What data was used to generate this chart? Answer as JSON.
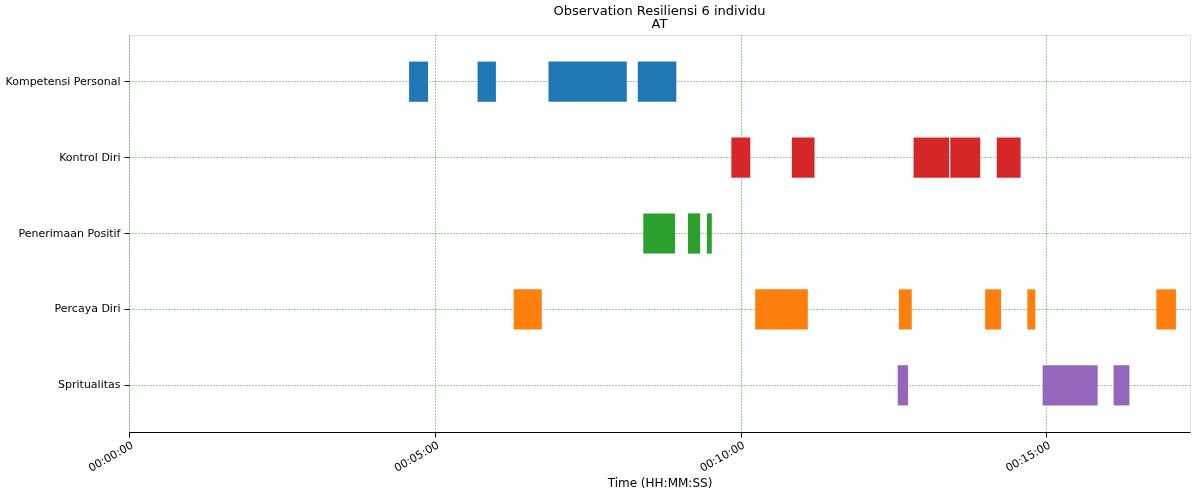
{
  "chart_data": {
    "type": "bar",
    "orientation": "horizontal",
    "title": "Observation Resiliensi 6 individu",
    "subtitle": "AT",
    "xlabel": "Time (HH:MM:SS)",
    "categories": [
      "Kompetensi Personal",
      "Kontrol Diri",
      "Penerimaan Positif",
      "Percaya Diri",
      "Spritualitas"
    ],
    "series": [
      {
        "colors": [
          "#1f77b4",
          "#d62728",
          "#2ca02c",
          "#ff7f0e",
          "#9467bd"
        ],
        "base": [
          4.58,
          9.85,
          8.41,
          6.29,
          12.57
        ],
        "values": [
          0.31,
          0.31,
          0.52,
          0.46,
          0.17
        ]
      },
      {
        "colors": [
          "#1f77b4",
          "#d62728",
          "#2ca02c",
          "#ff7f0e",
          "#9467bd"
        ],
        "base": [
          5.7,
          10.84,
          9.14,
          10.24,
          14.94
        ],
        "values": [
          0.3,
          0.37,
          0.2,
          0.86,
          0.9
        ]
      },
      {
        "colors": [
          "#1f77b4",
          "#d62728",
          "#2ca02c",
          "#ff7f0e",
          "#9467bd"
        ],
        "base": [
          6.86,
          12.83,
          9.45,
          12.59,
          16.1
        ],
        "values": [
          1.28,
          0.58,
          0.08,
          0.21,
          0.26
        ]
      },
      {
        "colors": [
          "#1f77b4",
          "#d62728",
          null,
          "#ff7f0e",
          null
        ],
        "base": [
          8.32,
          13.43,
          null,
          14.0,
          null
        ],
        "values": [
          0.63,
          0.49,
          null,
          0.26,
          null
        ]
      },
      {
        "colors": [
          null,
          "#d62728",
          null,
          "#ff7f0e",
          null
        ],
        "base": [
          null,
          14.19,
          null,
          14.69,
          null
        ],
        "values": [
          null,
          0.39,
          null,
          0.13,
          null
        ]
      },
      {
        "colors": [
          null,
          null,
          null,
          "#ff7f0e",
          null
        ],
        "base": [
          null,
          null,
          null,
          16.8,
          null
        ],
        "values": [
          null,
          null,
          null,
          0.32,
          null
        ]
      }
    ],
    "xlim": [
      0,
      17.35
    ],
    "xticks": [
      {
        "value": 0,
        "label": "00:00:00"
      },
      {
        "value": 5,
        "label": "00:05:00"
      },
      {
        "value": 10,
        "label": "00:10:00"
      },
      {
        "value": 15,
        "label": "00:15:00"
      }
    ],
    "grid": true
  }
}
